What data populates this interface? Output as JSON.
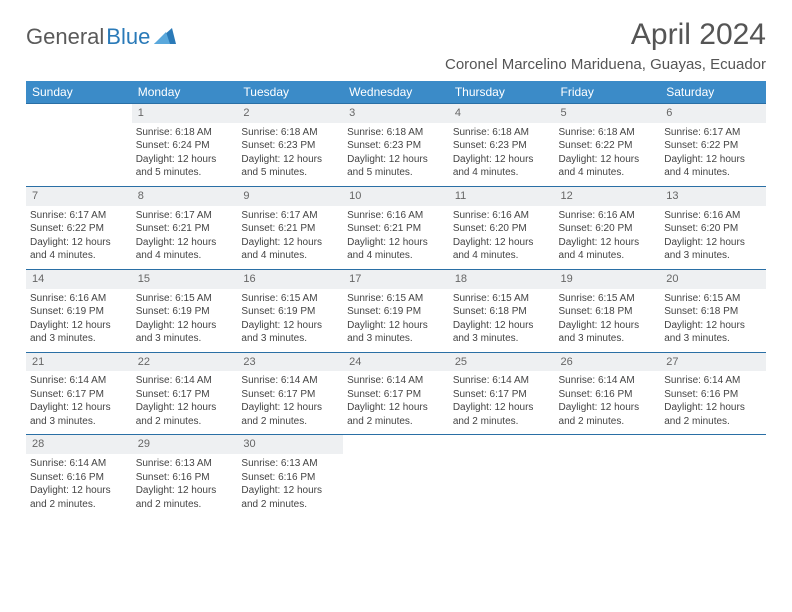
{
  "logo": {
    "part1": "General",
    "part2": "Blue"
  },
  "title": "April 2024",
  "location": "Coronel Marcelino Mariduena, Guayas, Ecuador",
  "colors": {
    "header_bg": "#3b8bc8",
    "row_border": "#2a6fa5",
    "daynum_bg": "#eef0f2",
    "text": "#444444"
  },
  "day_headers": [
    "Sunday",
    "Monday",
    "Tuesday",
    "Wednesday",
    "Thursday",
    "Friday",
    "Saturday"
  ],
  "weeks": [
    {
      "nums": [
        "",
        "1",
        "2",
        "3",
        "4",
        "5",
        "6"
      ],
      "cells": [
        {},
        {
          "sunrise": "Sunrise: 6:18 AM",
          "sunset": "Sunset: 6:24 PM",
          "dl1": "Daylight: 12 hours",
          "dl2": "and 5 minutes."
        },
        {
          "sunrise": "Sunrise: 6:18 AM",
          "sunset": "Sunset: 6:23 PM",
          "dl1": "Daylight: 12 hours",
          "dl2": "and 5 minutes."
        },
        {
          "sunrise": "Sunrise: 6:18 AM",
          "sunset": "Sunset: 6:23 PM",
          "dl1": "Daylight: 12 hours",
          "dl2": "and 5 minutes."
        },
        {
          "sunrise": "Sunrise: 6:18 AM",
          "sunset": "Sunset: 6:23 PM",
          "dl1": "Daylight: 12 hours",
          "dl2": "and 4 minutes."
        },
        {
          "sunrise": "Sunrise: 6:18 AM",
          "sunset": "Sunset: 6:22 PM",
          "dl1": "Daylight: 12 hours",
          "dl2": "and 4 minutes."
        },
        {
          "sunrise": "Sunrise: 6:17 AM",
          "sunset": "Sunset: 6:22 PM",
          "dl1": "Daylight: 12 hours",
          "dl2": "and 4 minutes."
        }
      ]
    },
    {
      "nums": [
        "7",
        "8",
        "9",
        "10",
        "11",
        "12",
        "13"
      ],
      "cells": [
        {
          "sunrise": "Sunrise: 6:17 AM",
          "sunset": "Sunset: 6:22 PM",
          "dl1": "Daylight: 12 hours",
          "dl2": "and 4 minutes."
        },
        {
          "sunrise": "Sunrise: 6:17 AM",
          "sunset": "Sunset: 6:21 PM",
          "dl1": "Daylight: 12 hours",
          "dl2": "and 4 minutes."
        },
        {
          "sunrise": "Sunrise: 6:17 AM",
          "sunset": "Sunset: 6:21 PM",
          "dl1": "Daylight: 12 hours",
          "dl2": "and 4 minutes."
        },
        {
          "sunrise": "Sunrise: 6:16 AM",
          "sunset": "Sunset: 6:21 PM",
          "dl1": "Daylight: 12 hours",
          "dl2": "and 4 minutes."
        },
        {
          "sunrise": "Sunrise: 6:16 AM",
          "sunset": "Sunset: 6:20 PM",
          "dl1": "Daylight: 12 hours",
          "dl2": "and 4 minutes."
        },
        {
          "sunrise": "Sunrise: 6:16 AM",
          "sunset": "Sunset: 6:20 PM",
          "dl1": "Daylight: 12 hours",
          "dl2": "and 4 minutes."
        },
        {
          "sunrise": "Sunrise: 6:16 AM",
          "sunset": "Sunset: 6:20 PM",
          "dl1": "Daylight: 12 hours",
          "dl2": "and 3 minutes."
        }
      ]
    },
    {
      "nums": [
        "14",
        "15",
        "16",
        "17",
        "18",
        "19",
        "20"
      ],
      "cells": [
        {
          "sunrise": "Sunrise: 6:16 AM",
          "sunset": "Sunset: 6:19 PM",
          "dl1": "Daylight: 12 hours",
          "dl2": "and 3 minutes."
        },
        {
          "sunrise": "Sunrise: 6:15 AM",
          "sunset": "Sunset: 6:19 PM",
          "dl1": "Daylight: 12 hours",
          "dl2": "and 3 minutes."
        },
        {
          "sunrise": "Sunrise: 6:15 AM",
          "sunset": "Sunset: 6:19 PM",
          "dl1": "Daylight: 12 hours",
          "dl2": "and 3 minutes."
        },
        {
          "sunrise": "Sunrise: 6:15 AM",
          "sunset": "Sunset: 6:19 PM",
          "dl1": "Daylight: 12 hours",
          "dl2": "and 3 minutes."
        },
        {
          "sunrise": "Sunrise: 6:15 AM",
          "sunset": "Sunset: 6:18 PM",
          "dl1": "Daylight: 12 hours",
          "dl2": "and 3 minutes."
        },
        {
          "sunrise": "Sunrise: 6:15 AM",
          "sunset": "Sunset: 6:18 PM",
          "dl1": "Daylight: 12 hours",
          "dl2": "and 3 minutes."
        },
        {
          "sunrise": "Sunrise: 6:15 AM",
          "sunset": "Sunset: 6:18 PM",
          "dl1": "Daylight: 12 hours",
          "dl2": "and 3 minutes."
        }
      ]
    },
    {
      "nums": [
        "21",
        "22",
        "23",
        "24",
        "25",
        "26",
        "27"
      ],
      "cells": [
        {
          "sunrise": "Sunrise: 6:14 AM",
          "sunset": "Sunset: 6:17 PM",
          "dl1": "Daylight: 12 hours",
          "dl2": "and 3 minutes."
        },
        {
          "sunrise": "Sunrise: 6:14 AM",
          "sunset": "Sunset: 6:17 PM",
          "dl1": "Daylight: 12 hours",
          "dl2": "and 2 minutes."
        },
        {
          "sunrise": "Sunrise: 6:14 AM",
          "sunset": "Sunset: 6:17 PM",
          "dl1": "Daylight: 12 hours",
          "dl2": "and 2 minutes."
        },
        {
          "sunrise": "Sunrise: 6:14 AM",
          "sunset": "Sunset: 6:17 PM",
          "dl1": "Daylight: 12 hours",
          "dl2": "and 2 minutes."
        },
        {
          "sunrise": "Sunrise: 6:14 AM",
          "sunset": "Sunset: 6:17 PM",
          "dl1": "Daylight: 12 hours",
          "dl2": "and 2 minutes."
        },
        {
          "sunrise": "Sunrise: 6:14 AM",
          "sunset": "Sunset: 6:16 PM",
          "dl1": "Daylight: 12 hours",
          "dl2": "and 2 minutes."
        },
        {
          "sunrise": "Sunrise: 6:14 AM",
          "sunset": "Sunset: 6:16 PM",
          "dl1": "Daylight: 12 hours",
          "dl2": "and 2 minutes."
        }
      ]
    },
    {
      "nums": [
        "28",
        "29",
        "30",
        "",
        "",
        "",
        ""
      ],
      "cells": [
        {
          "sunrise": "Sunrise: 6:14 AM",
          "sunset": "Sunset: 6:16 PM",
          "dl1": "Daylight: 12 hours",
          "dl2": "and 2 minutes."
        },
        {
          "sunrise": "Sunrise: 6:13 AM",
          "sunset": "Sunset: 6:16 PM",
          "dl1": "Daylight: 12 hours",
          "dl2": "and 2 minutes."
        },
        {
          "sunrise": "Sunrise: 6:13 AM",
          "sunset": "Sunset: 6:16 PM",
          "dl1": "Daylight: 12 hours",
          "dl2": "and 2 minutes."
        },
        {},
        {},
        {},
        {}
      ]
    }
  ]
}
